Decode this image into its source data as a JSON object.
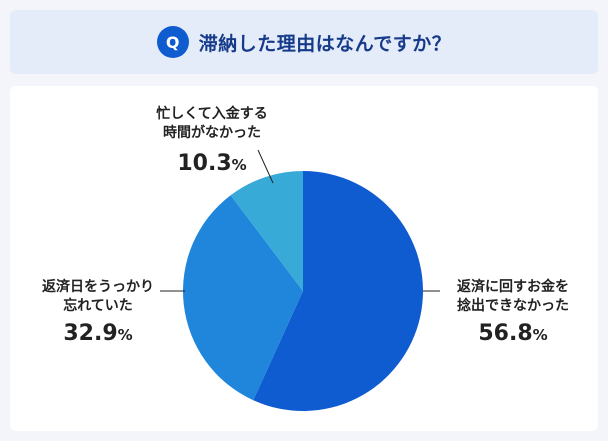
{
  "header": {
    "badge": "Q",
    "question": "滞納した理由はなんですか？"
  },
  "colors": {
    "s1": "#0f5bd0",
    "s2": "#1f86dc",
    "s3": "#38aad8",
    "accent": "#0f5bd0"
  },
  "chart_data": {
    "type": "pie",
    "title": "滞納した理由はなんですか？",
    "slices": [
      {
        "label_lines": [
          "返済に回すお金を",
          "捻出できなかった"
        ],
        "value": 56.8,
        "value_text": "56.8",
        "unit": "%"
      },
      {
        "label_lines": [
          "返済日をうっかり",
          "忘れていた"
        ],
        "value": 32.9,
        "value_text": "32.9",
        "unit": "%"
      },
      {
        "label_lines": [
          "忙しくて入金する",
          "時間がなかった"
        ],
        "value": 10.3,
        "value_text": "10.3",
        "unit": "%"
      }
    ]
  }
}
